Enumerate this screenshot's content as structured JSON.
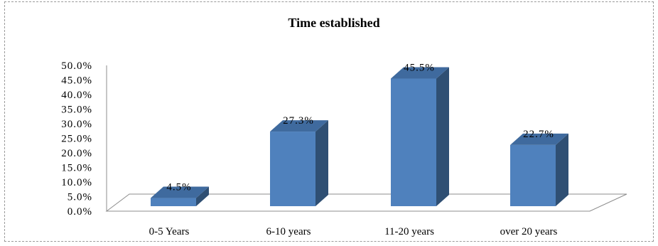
{
  "chart_data": {
    "type": "bar",
    "title": "Time established",
    "categories": [
      "0-5 Years",
      "6-10 years",
      "11-20 years",
      "over 20 years"
    ],
    "values": [
      4.5,
      27.3,
      45.5,
      22.7
    ],
    "value_labels": [
      "4.5%",
      "27.3%",
      "45.5%",
      "22.7%"
    ],
    "ylim": [
      0,
      50
    ],
    "y_ticks": [
      0,
      5,
      10,
      15,
      20,
      25,
      30,
      35,
      40,
      45,
      50
    ],
    "y_tick_labels": [
      "0.0%",
      "5.0%",
      "10.0%",
      "15.0%",
      "20.0%",
      "25.0%",
      "30.0%",
      "35.0%",
      "40.0%",
      "45.0%",
      "50.0%"
    ],
    "xlabel": "",
    "ylabel": "",
    "grid": false,
    "legend": "none",
    "style": "3d-column",
    "colors": {
      "front": "#4F81BD",
      "side": "#2F4F73",
      "top": "#3F6A9E"
    }
  }
}
